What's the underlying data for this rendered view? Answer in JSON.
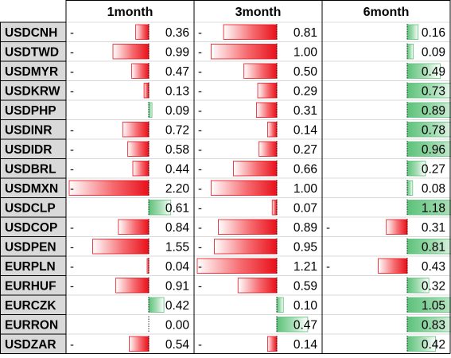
{
  "chart_data": {
    "type": "table",
    "title": "",
    "columns": [
      "1month",
      "3month",
      "6month"
    ],
    "rows": [
      {
        "label": "USDCNH",
        "values": [
          "-0.36",
          "-0.81",
          "0.16"
        ]
      },
      {
        "label": "USDTWD",
        "values": [
          "-0.99",
          "-1.00",
          "0.09"
        ]
      },
      {
        "label": "USDMYR",
        "values": [
          "-0.47",
          "-0.50",
          "0.49"
        ]
      },
      {
        "label": "USDKRW",
        "values": [
          "-0.13",
          "-0.29",
          "0.73"
        ]
      },
      {
        "label": "USDPHP",
        "values": [
          "0.09",
          "-0.31",
          "0.89"
        ]
      },
      {
        "label": "USDINR",
        "values": [
          "-0.72",
          "-0.14",
          "0.78"
        ]
      },
      {
        "label": "USDIDR",
        "values": [
          "-0.58",
          "-0.27",
          "0.96"
        ]
      },
      {
        "label": "USDBRL",
        "values": [
          "-0.44",
          "-0.66",
          "0.27"
        ]
      },
      {
        "label": "USDMXN",
        "values": [
          "-2.20",
          "-1.00",
          "0.08"
        ]
      },
      {
        "label": "USDCLP",
        "values": [
          "0.61",
          "-0.07",
          "1.18"
        ]
      },
      {
        "label": "USDCOP",
        "values": [
          "-0.84",
          "-0.89",
          "-0.31"
        ]
      },
      {
        "label": "USDPEN",
        "values": [
          "-1.55",
          "-0.95",
          "0.81"
        ]
      },
      {
        "label": "EURPLN",
        "values": [
          "-0.04",
          "-1.21",
          "-0.43"
        ]
      },
      {
        "label": "EURHUF",
        "values": [
          "-0.91",
          "-0.59",
          "0.32"
        ]
      },
      {
        "label": "EURCZK",
        "values": [
          "0.42",
          "0.10",
          "1.05"
        ]
      },
      {
        "label": "EURRON",
        "values": [
          "0.00",
          "0.47",
          "0.83"
        ]
      },
      {
        "label": "USDZAR",
        "values": [
          "-0.54",
          "-0.14",
          "0.42"
        ]
      }
    ]
  },
  "colors": {
    "negative_bar": "#e8101a",
    "positive_bar": "#5cc27a",
    "row_label_bg": "#d9d9d9",
    "border": "#000000",
    "cell_border": "#d4d4d4"
  }
}
